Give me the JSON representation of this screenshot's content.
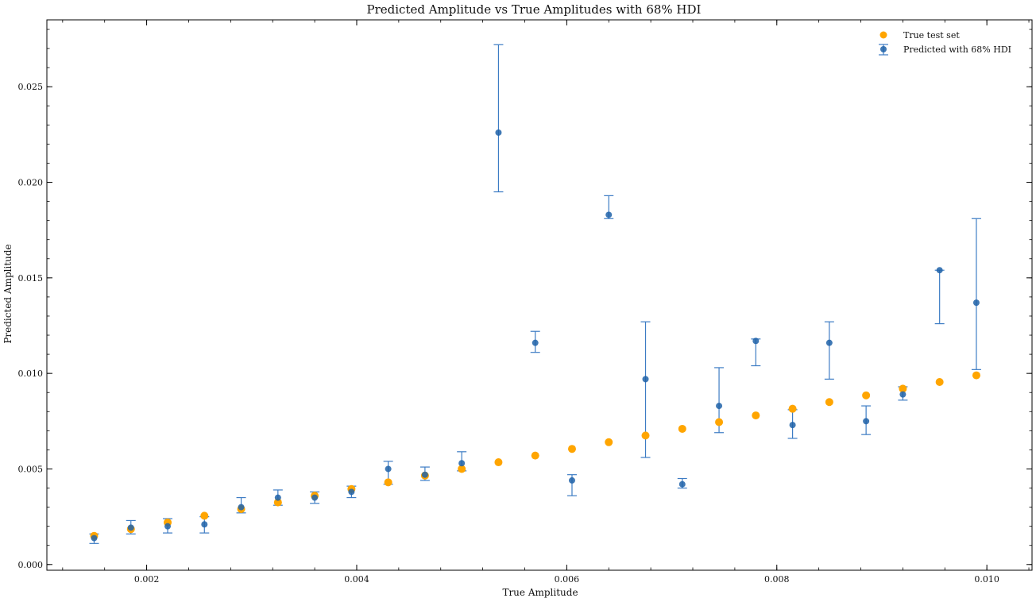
{
  "chart_data": {
    "type": "scatter",
    "title": "Predicted Amplitude vs True Amplitudes with 68% HDI",
    "xlabel": "True Amplitude",
    "ylabel": "Predicted Amplitude",
    "xlim": [
      0.00105,
      0.01043
    ],
    "ylim": [
      -0.0003,
      0.0285
    ],
    "x_ticks": [
      0.002,
      0.004,
      0.006,
      0.008,
      0.01
    ],
    "x_tick_labels": [
      "0.002",
      "0.004",
      "0.006",
      "0.008",
      "0.010"
    ],
    "y_ticks": [
      0.0,
      0.005,
      0.01,
      0.015,
      0.02,
      0.025
    ],
    "y_tick_labels": [
      "0.000",
      "0.005",
      "0.010",
      "0.015",
      "0.020",
      "0.025"
    ],
    "grid": false,
    "legend_position": "top-right",
    "colors": {
      "true": "#ffa500",
      "pred": "#1f62a8",
      "errorbar": "#3d7cc4"
    },
    "series": [
      {
        "name": "True test set",
        "kind": "scatter",
        "x": [
          0.0015,
          0.00185,
          0.0022,
          0.00255,
          0.0029,
          0.00325,
          0.0036,
          0.00395,
          0.0043,
          0.00465,
          0.005,
          0.00535,
          0.0057,
          0.00605,
          0.0064,
          0.00675,
          0.0071,
          0.00745,
          0.0078,
          0.00815,
          0.0085,
          0.00885,
          0.0092,
          0.00955,
          0.0099
        ],
        "y": [
          0.0015,
          0.00185,
          0.0022,
          0.00255,
          0.0029,
          0.00325,
          0.0036,
          0.00395,
          0.0043,
          0.00465,
          0.005,
          0.00535,
          0.0057,
          0.00605,
          0.0064,
          0.00675,
          0.0071,
          0.00745,
          0.0078,
          0.00815,
          0.0085,
          0.00885,
          0.0092,
          0.00955,
          0.0099
        ]
      },
      {
        "name": "Predicted with 68% HDI",
        "kind": "errorbar",
        "x": [
          0.0015,
          0.00185,
          0.0022,
          0.00255,
          0.0029,
          0.00325,
          0.0036,
          0.00395,
          0.0043,
          0.00465,
          0.005,
          0.00535,
          0.0057,
          0.00605,
          0.0064,
          0.00675,
          0.0071,
          0.00745,
          0.0078,
          0.00815,
          0.0085,
          0.00885,
          0.0092,
          0.00955,
          0.0099
        ],
        "y": [
          0.00138,
          0.00193,
          0.002,
          0.0021,
          0.003,
          0.0035,
          0.0035,
          0.0038,
          0.005,
          0.0047,
          0.0053,
          0.0226,
          0.0116,
          0.0044,
          0.0183,
          0.0097,
          0.0042,
          0.0083,
          0.0117,
          0.0073,
          0.0116,
          0.0075,
          0.0089,
          0.0154,
          0.0137
        ],
        "lower": [
          0.0011,
          0.0016,
          0.00165,
          0.00165,
          0.0027,
          0.0031,
          0.0032,
          0.0035,
          0.0042,
          0.0044,
          0.0049,
          0.0195,
          0.0111,
          0.0036,
          0.0181,
          0.0056,
          0.004,
          0.0069,
          0.0104,
          0.0066,
          0.0097,
          0.0068,
          0.0086,
          0.0126,
          0.0102
        ],
        "upper": [
          0.0016,
          0.0023,
          0.0024,
          0.0025,
          0.0035,
          0.0039,
          0.0038,
          0.0041,
          0.0054,
          0.0051,
          0.0059,
          0.0272,
          0.0122,
          0.0047,
          0.0193,
          0.0127,
          0.0045,
          0.0103,
          0.0118,
          0.0081,
          0.0127,
          0.0083,
          0.0093,
          0.0154,
          0.0181
        ]
      }
    ]
  }
}
